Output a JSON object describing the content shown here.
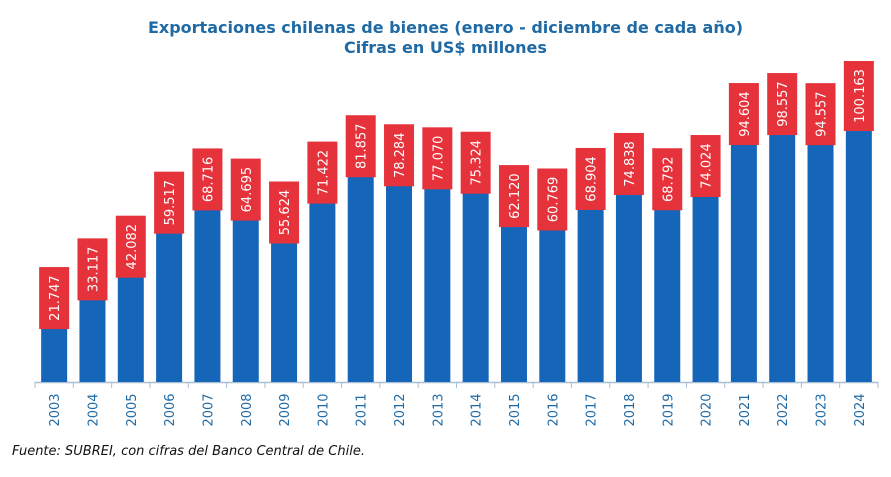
{
  "chart_data": {
    "type": "bar",
    "title": "Exportaciones chilenas de bienes (enero - diciembre de cada año)",
    "subtitle": "Cifras en US$ millones",
    "xlabel": "",
    "ylabel": "",
    "categories": [
      "2003",
      "2004",
      "2005",
      "2006",
      "2007",
      "2008",
      "2009",
      "2010",
      "2011",
      "2012",
      "2013",
      "2014",
      "2015",
      "2016",
      "2017",
      "2018",
      "2019",
      "2020",
      "2021",
      "2022",
      "2023",
      "2024"
    ],
    "values": [
      21.747,
      33.117,
      42.082,
      59.517,
      68.716,
      64.695,
      55.624,
      71.422,
      81.857,
      78.284,
      77.07,
      75.324,
      62.12,
      60.769,
      68.904,
      74.838,
      68.792,
      74.024,
      94.604,
      98.557,
      94.557,
      100.163
    ],
    "labels": [
      "21.747",
      "33.117",
      "42.082",
      "59.517",
      "68.716",
      "64.695",
      "55.624",
      "71.422",
      "81.857",
      "78.284",
      "77.070",
      "75.324",
      "62.120",
      "60.769",
      "68.904",
      "74.838",
      "68.792",
      "74.024",
      "94.604",
      "98.557",
      "94.557",
      "100.163"
    ],
    "ylim": [
      0,
      100.163
    ],
    "grid": false,
    "legend": "none",
    "colors": {
      "bar": "#1565b8",
      "bar_highlight": "#0a4f99",
      "label_bg": "#e5323b",
      "label_text": "#ffffff",
      "axis": "#a9bfd6",
      "tick_text": "#1f6aa5",
      "title": "#1f6aa5"
    }
  },
  "source": "Fuente: SUBREI, con cifras del Banco Central de Chile."
}
